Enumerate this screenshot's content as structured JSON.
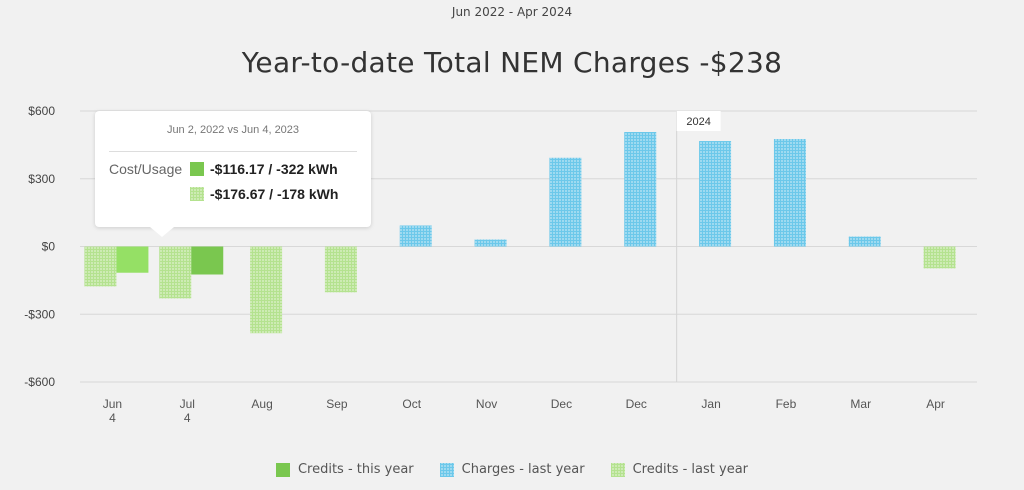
{
  "date_range": "Jun 2022 - Apr 2024",
  "chart_data": {
    "type": "bar",
    "title": "Year-to-date Total NEM Charges -$238",
    "categories": [
      [
        "Jun",
        "4"
      ],
      [
        "Jul",
        "4"
      ],
      [
        "Aug"
      ],
      [
        "Sep"
      ],
      [
        "Oct"
      ],
      [
        "Nov"
      ],
      [
        "Dec"
      ],
      [
        "Dec"
      ],
      [
        "Jan"
      ],
      [
        "Feb"
      ],
      [
        "Mar"
      ],
      [
        "Apr"
      ]
    ],
    "ylim": [
      -600,
      600
    ],
    "yticks": [
      600,
      300,
      0,
      -300,
      -600
    ],
    "ytick_labels": [
      "$600",
      "$300",
      "$0",
      "-$300",
      "-$600"
    ],
    "grid": true,
    "year_marker": {
      "label": "2024",
      "before_category_index": 8
    },
    "last_year": [
      -176.67,
      -230,
      -384,
      -203,
      93,
      31,
      393,
      507,
      467,
      476,
      44,
      -97
    ],
    "this_year": [
      -116.17,
      -124,
      null,
      null,
      null,
      null,
      null,
      null,
      null,
      null,
      null,
      null
    ],
    "legend": [
      {
        "name": "Credits - this year",
        "color": "#7ac74f"
      },
      {
        "name": "Charges - last year",
        "color": "#8fd6ee"
      },
      {
        "name": "Credits - last year",
        "color": "#c4e8a8"
      }
    ],
    "legend_position": "bottom",
    "highlight_color": "#95e065"
  },
  "tooltip": {
    "date": "Jun 2, 2022 vs Jun 4, 2023",
    "label": "Cost/Usage",
    "rows": [
      "-$116.17 / -322 kWh",
      "-$176.67 / -178 kWh"
    ]
  }
}
